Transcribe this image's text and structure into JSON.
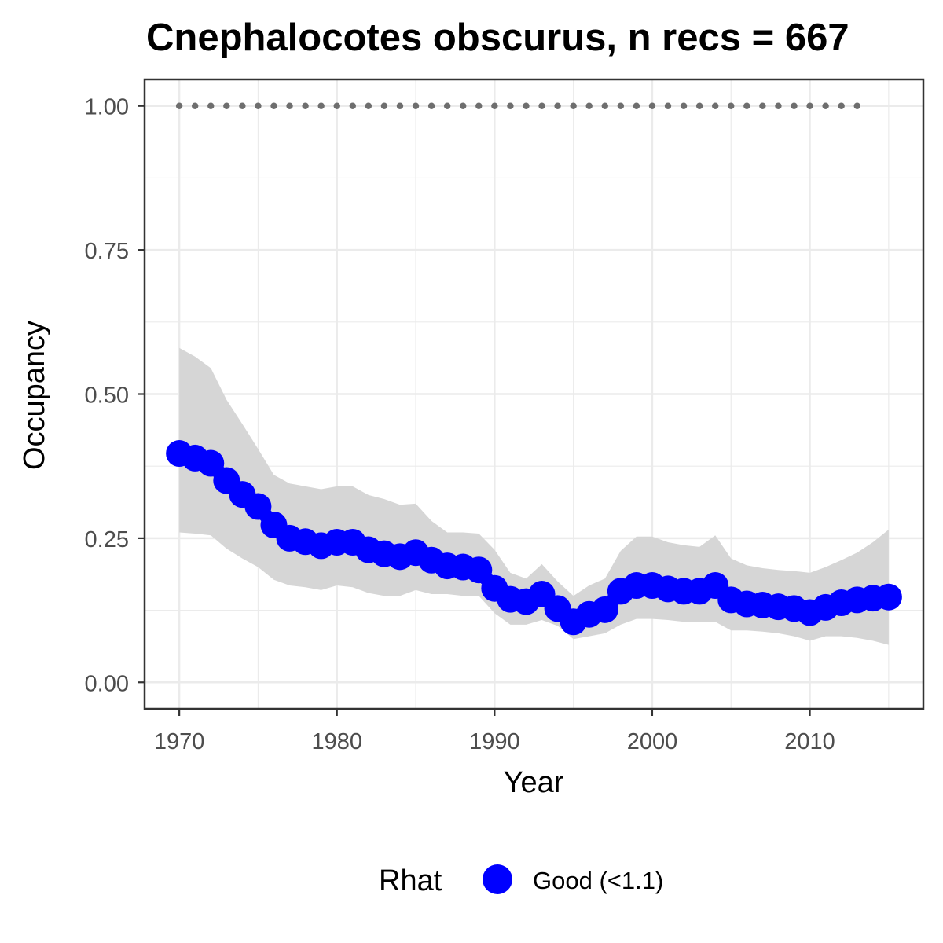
{
  "chart_data": {
    "type": "line",
    "title": "Cnephalocotes obscurus, n recs = 667",
    "xlabel": "Year",
    "ylabel": "Occupancy",
    "xlim": [
      1967.8,
      2017.2
    ],
    "ylim": [
      -0.046,
      1.046
    ],
    "x_ticks": [
      1970,
      1980,
      1990,
      2000,
      2010
    ],
    "x_tick_labels": [
      "1970",
      "1980",
      "1990",
      "2000",
      "2010"
    ],
    "y_ticks": [
      0,
      0.25,
      0.5,
      0.75,
      1.0
    ],
    "y_tick_labels": [
      "0.00",
      "0.25",
      "0.50",
      "0.75",
      "1.00"
    ],
    "grid": true,
    "series": [
      {
        "name": "Occupancy (mean)",
        "x": [
          1970,
          1971,
          1972,
          1973,
          1974,
          1975,
          1976,
          1977,
          1978,
          1979,
          1980,
          1981,
          1982,
          1983,
          1984,
          1985,
          1986,
          1987,
          1988,
          1989,
          1990,
          1991,
          1992,
          1993,
          1994,
          1995,
          1996,
          1997,
          1998,
          1999,
          2000,
          2001,
          2002,
          2003,
          2004,
          2005,
          2006,
          2007,
          2008,
          2009,
          2010,
          2011,
          2012,
          2013,
          2014,
          2015
        ],
        "y": [
          0.397,
          0.389,
          0.38,
          0.35,
          0.326,
          0.305,
          0.273,
          0.25,
          0.244,
          0.237,
          0.243,
          0.243,
          0.23,
          0.223,
          0.218,
          0.225,
          0.212,
          0.202,
          0.2,
          0.195,
          0.163,
          0.144,
          0.14,
          0.153,
          0.128,
          0.105,
          0.118,
          0.126,
          0.158,
          0.168,
          0.168,
          0.162,
          0.158,
          0.158,
          0.168,
          0.143,
          0.136,
          0.134,
          0.131,
          0.128,
          0.121,
          0.13,
          0.138,
          0.143,
          0.146,
          0.148
        ]
      },
      {
        "name": "Credible interval lower",
        "x": [
          1970,
          1971,
          1972,
          1973,
          1974,
          1975,
          1976,
          1977,
          1978,
          1979,
          1980,
          1981,
          1982,
          1983,
          1984,
          1985,
          1986,
          1987,
          1988,
          1989,
          1990,
          1991,
          1992,
          1993,
          1994,
          1995,
          1996,
          1997,
          1998,
          1999,
          2000,
          2001,
          2002,
          2003,
          2004,
          2005,
          2006,
          2007,
          2008,
          2009,
          2010,
          2011,
          2012,
          2013,
          2014,
          2015
        ],
        "y": [
          0.26,
          0.258,
          0.255,
          0.232,
          0.215,
          0.2,
          0.178,
          0.168,
          0.165,
          0.16,
          0.168,
          0.165,
          0.155,
          0.15,
          0.15,
          0.16,
          0.153,
          0.153,
          0.15,
          0.15,
          0.12,
          0.1,
          0.1,
          0.108,
          0.098,
          0.075,
          0.08,
          0.085,
          0.1,
          0.11,
          0.11,
          0.108,
          0.105,
          0.105,
          0.105,
          0.09,
          0.09,
          0.088,
          0.085,
          0.08,
          0.072,
          0.08,
          0.08,
          0.077,
          0.072,
          0.065
        ]
      },
      {
        "name": "Credible interval upper",
        "x": [
          1970,
          1971,
          1972,
          1973,
          1974,
          1975,
          1976,
          1977,
          1978,
          1979,
          1980,
          1981,
          1982,
          1983,
          1984,
          1985,
          1986,
          1987,
          1988,
          1989,
          1990,
          1991,
          1992,
          1993,
          1994,
          1995,
          1996,
          1997,
          1998,
          1999,
          2000,
          2001,
          2002,
          2003,
          2004,
          2005,
          2006,
          2007,
          2008,
          2009,
          2010,
          2011,
          2012,
          2013,
          2014,
          2015
        ],
        "y": [
          0.58,
          0.565,
          0.545,
          0.49,
          0.448,
          0.405,
          0.36,
          0.345,
          0.34,
          0.335,
          0.34,
          0.34,
          0.325,
          0.318,
          0.308,
          0.31,
          0.28,
          0.26,
          0.26,
          0.258,
          0.23,
          0.19,
          0.18,
          0.205,
          0.175,
          0.15,
          0.168,
          0.18,
          0.228,
          0.253,
          0.253,
          0.243,
          0.238,
          0.235,
          0.255,
          0.215,
          0.203,
          0.198,
          0.195,
          0.193,
          0.19,
          0.2,
          0.212,
          0.225,
          0.243,
          0.265
        ]
      },
      {
        "name": "Data years indicator",
        "x": [
          1970,
          1971,
          1972,
          1973,
          1974,
          1975,
          1976,
          1977,
          1978,
          1979,
          1980,
          1981,
          1982,
          1983,
          1984,
          1985,
          1986,
          1987,
          1988,
          1989,
          1990,
          1991,
          1992,
          1993,
          1994,
          1995,
          1996,
          1997,
          1998,
          1999,
          2000,
          2001,
          2002,
          2003,
          2004,
          2005,
          2006,
          2007,
          2008,
          2009,
          2010,
          2011,
          2012,
          2013
        ],
        "y": 1.0
      }
    ],
    "legend": {
      "position": "bottom",
      "title": "Rhat",
      "entries": [
        {
          "label": "Good (<1.1)",
          "color": "#0000ff"
        }
      ]
    },
    "colors": {
      "points": "#0000ff",
      "ribbon": "#d6d6d6",
      "dots": "#6e6e6e",
      "grid": "#ebebeb",
      "panel_border": "#333333",
      "tick_text": "#4d4d4d"
    }
  }
}
